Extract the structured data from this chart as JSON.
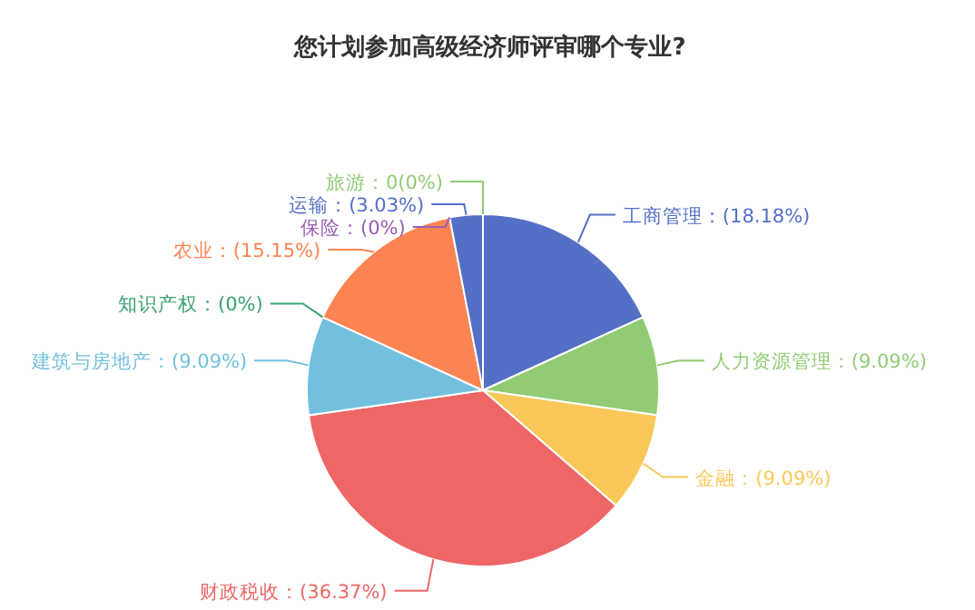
{
  "chart_data": {
    "type": "pie",
    "title": "您计划参加高级经济师评审哪个专业?",
    "categories": [
      "工商管理",
      "人力资源管理",
      "金融",
      "财政税收",
      "建筑与房地产",
      "知识产权",
      "农业",
      "保险",
      "运输",
      "旅游"
    ],
    "values": [
      18.18,
      9.09,
      9.09,
      36.37,
      9.09,
      0,
      15.15,
      0,
      3.03,
      0
    ],
    "colors": [
      "#5470c6",
      "#91cc75",
      "#fac858",
      "#ee6666",
      "#73c0de",
      "#3ba272",
      "#fc8452",
      "#9a60b4",
      "#5470c6",
      "#91cc75"
    ],
    "value_labels": [
      "：(18.18%)",
      "：(9.09%)",
      "：(9.09%)",
      "：(36.37%)",
      "：(9.09%)",
      "：(0%)",
      "：(15.15%)",
      "：(0%)",
      "：(3.03%)",
      "：0(0%)"
    ]
  }
}
